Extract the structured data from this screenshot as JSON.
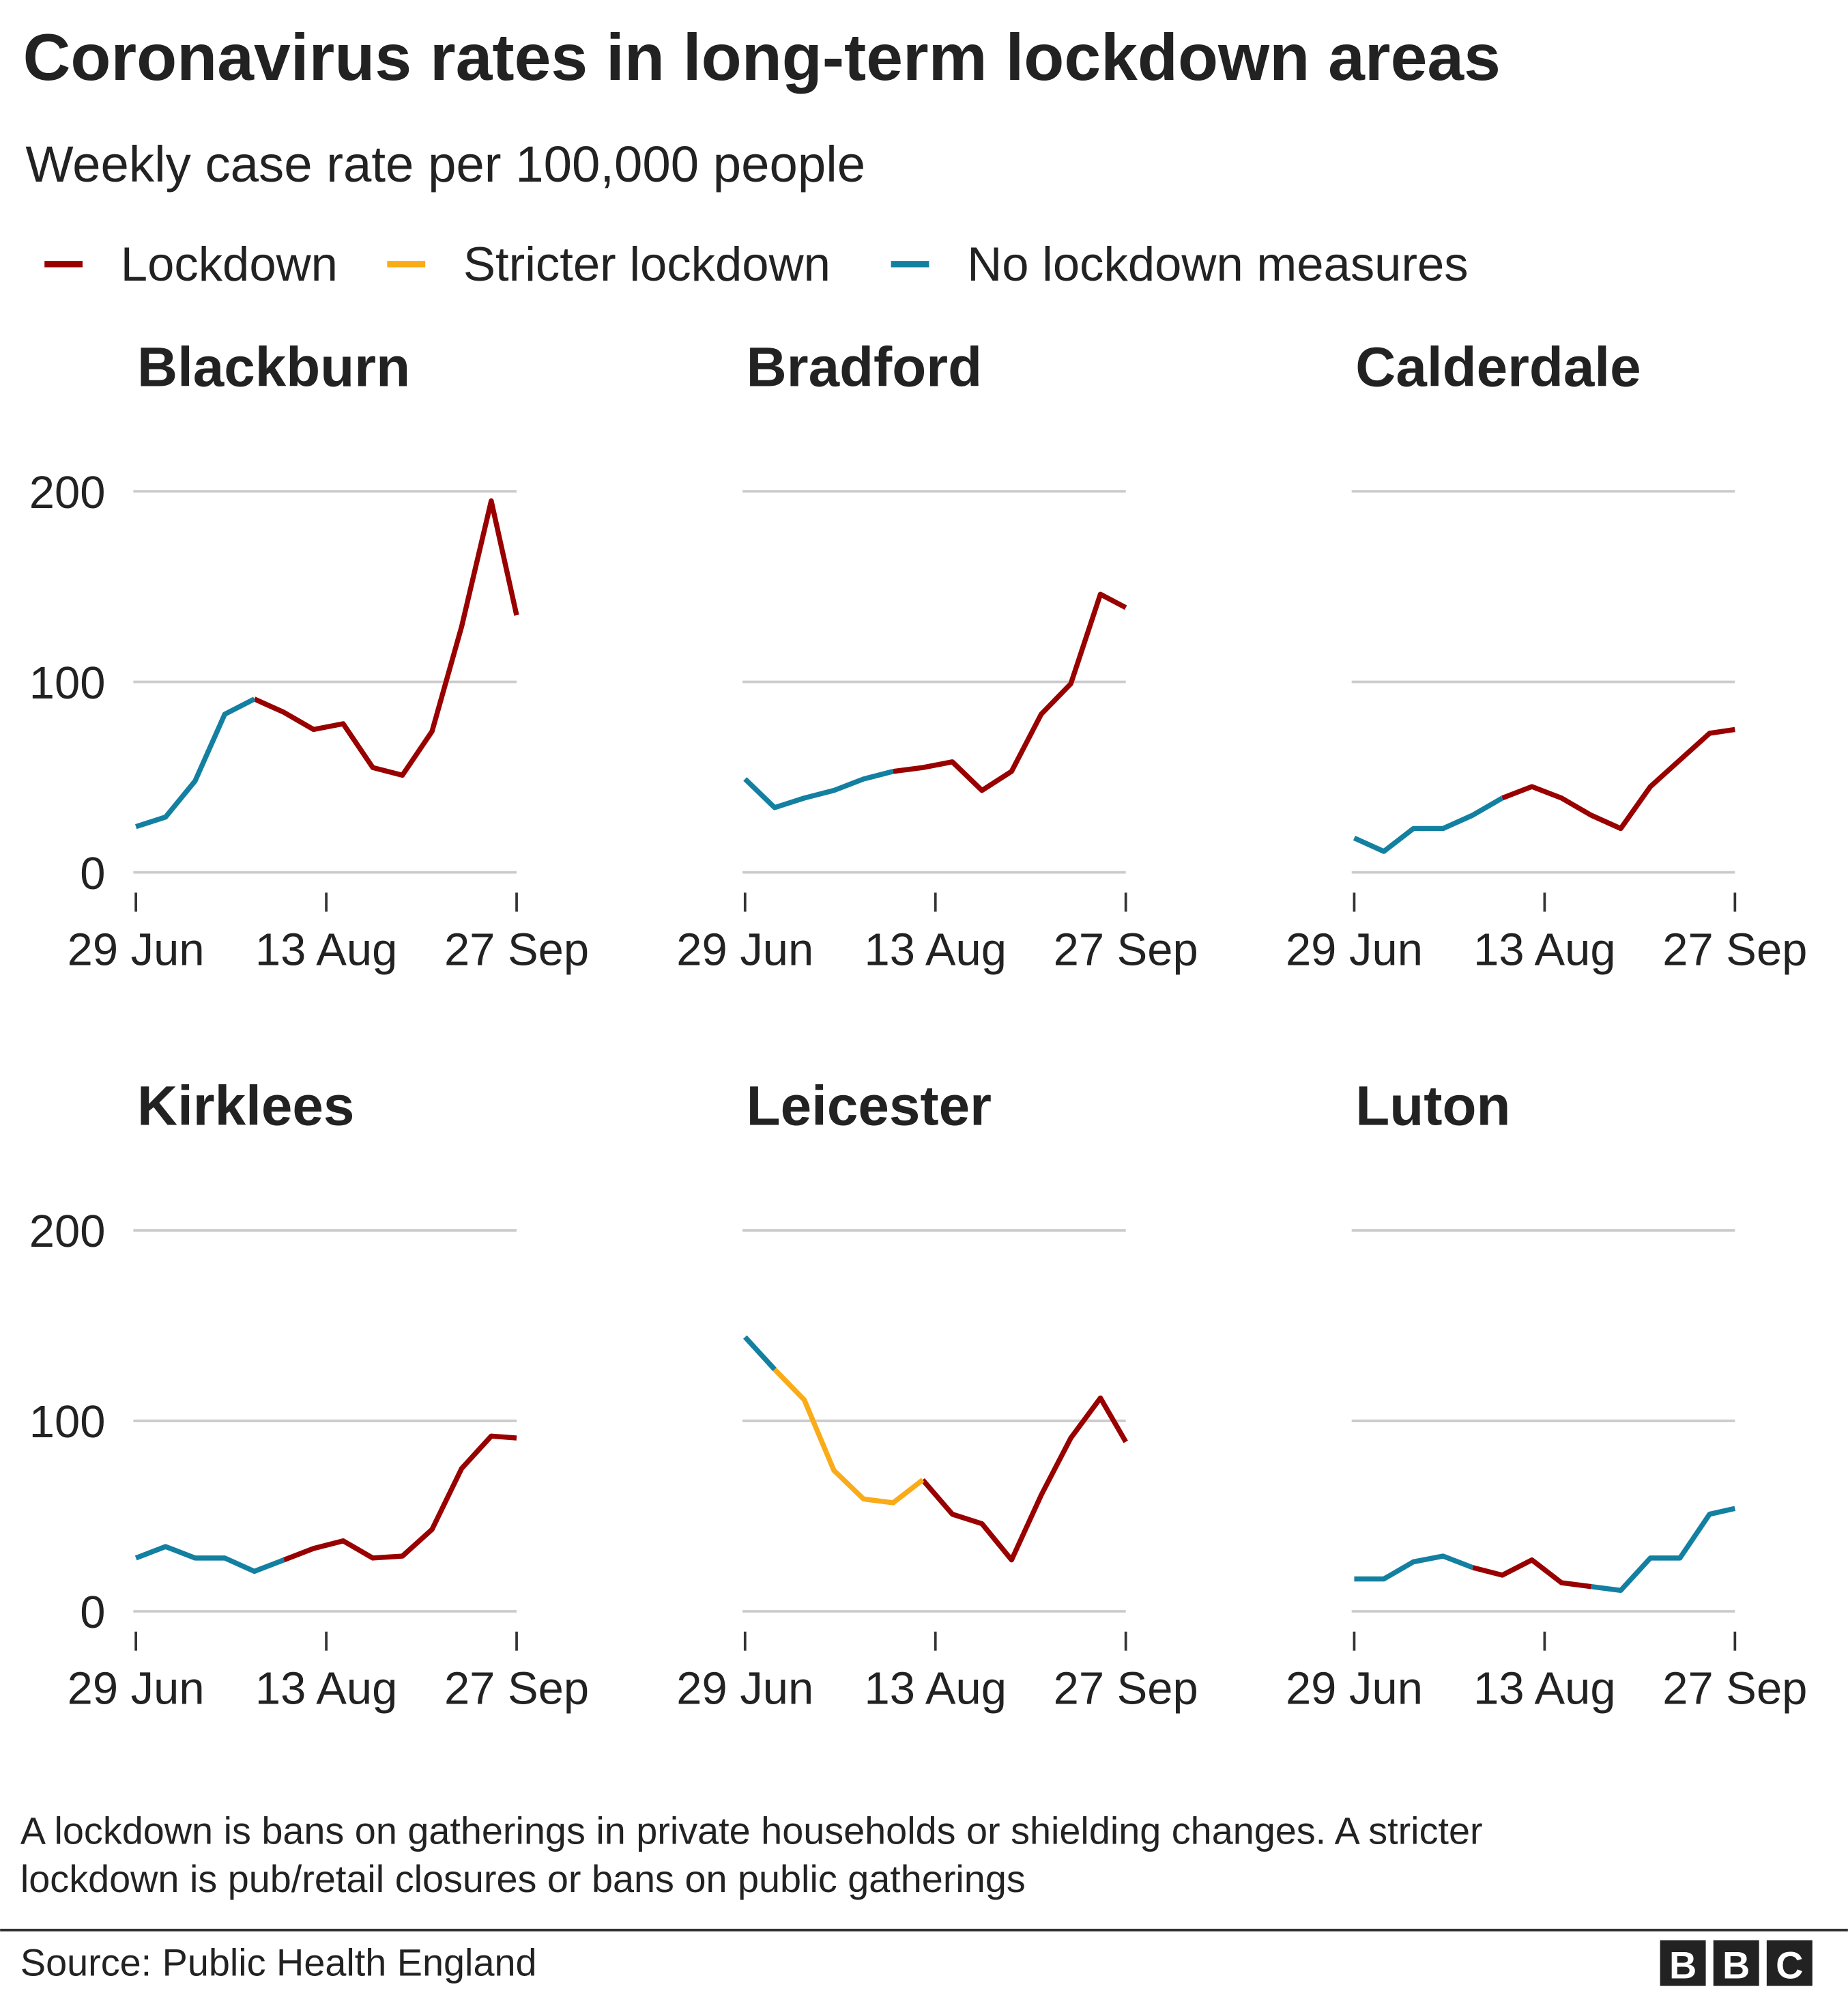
{
  "title": "Coronavirus rates in long-term lockdown areas",
  "subtitle": "Weekly case rate per 100,000 people",
  "legend": [
    {
      "name": "Lockdown",
      "color": "#990000"
    },
    {
      "name": "Stricter lockdown",
      "color": "#faab18"
    },
    {
      "name": "No lockdown measures",
      "color": "#1380a1"
    }
  ],
  "note": [
    "A lockdown is bans on gatherings in private households or shielding changes. A stricter",
    "lockdown is pub/retail closures or bans on public gatherings"
  ],
  "source": "Source: Public Health England",
  "logo": [
    "B",
    "B",
    "C"
  ],
  "chart_data": [
    {
      "type": "line",
      "title": "Blackburn",
      "x": [
        0,
        7,
        14,
        21,
        28,
        35,
        42,
        49,
        56,
        63,
        70,
        77,
        84,
        90
      ],
      "xlim": [
        0,
        90
      ],
      "xticks": [
        {
          "value": 0,
          "label": "29 Jun"
        },
        {
          "value": 45,
          "label": "13 Aug"
        },
        {
          "value": 90,
          "label": "27 Sep"
        }
      ],
      "ylim": [
        0,
        200
      ],
      "yticks": [
        0,
        100,
        200
      ],
      "grid": true,
      "series": [
        {
          "color": "#990000",
          "values": [
            null,
            null,
            null,
            null,
            91,
            84,
            75,
            78,
            55,
            51,
            74,
            129,
            195,
            135
          ]
        },
        {
          "color": "#1380a1",
          "values": [
            24,
            29,
            48,
            83,
            91,
            null,
            null,
            null,
            null,
            null,
            null,
            null,
            null,
            null
          ]
        }
      ]
    },
    {
      "type": "line",
      "title": "Bradford",
      "x": [
        0,
        7,
        14,
        21,
        28,
        35,
        42,
        49,
        56,
        63,
        70,
        77,
        84,
        90
      ],
      "xlim": [
        0,
        90
      ],
      "xticks": [
        {
          "value": 0,
          "label": "29 Jun"
        },
        {
          "value": 45,
          "label": "13 Aug"
        },
        {
          "value": 90,
          "label": "27 Sep"
        }
      ],
      "ylim": [
        0,
        200
      ],
      "yticks": [
        0,
        100,
        200
      ],
      "grid": true,
      "series": [
        {
          "color": "#990000",
          "values": [
            null,
            null,
            null,
            null,
            null,
            53,
            55,
            58,
            43,
            53,
            83,
            99,
            146,
            139
          ]
        },
        {
          "color": "#1380a1",
          "values": [
            49,
            34,
            39,
            43,
            49,
            53,
            null,
            null,
            null,
            null,
            null,
            null,
            null,
            null
          ]
        }
      ]
    },
    {
      "type": "line",
      "title": "Calderdale",
      "x": [
        0,
        7,
        14,
        21,
        28,
        35,
        42,
        49,
        56,
        63,
        70,
        77,
        84,
        90
      ],
      "xlim": [
        0,
        90
      ],
      "xticks": [
        {
          "value": 0,
          "label": "29 Jun"
        },
        {
          "value": 45,
          "label": "13 Aug"
        },
        {
          "value": 90,
          "label": "27 Sep"
        }
      ],
      "ylim": [
        0,
        200
      ],
      "yticks": [
        0,
        100,
        200
      ],
      "grid": true,
      "series": [
        {
          "color": "#990000",
          "values": [
            null,
            null,
            null,
            null,
            null,
            39,
            45,
            39,
            30,
            23,
            45,
            59,
            73,
            75
          ]
        },
        {
          "color": "#1380a1",
          "values": [
            18,
            11,
            23,
            23,
            30,
            39,
            null,
            null,
            null,
            null,
            null,
            null,
            null,
            null
          ]
        }
      ]
    },
    {
      "type": "line",
      "title": "Kirklees",
      "x": [
        0,
        7,
        14,
        21,
        28,
        35,
        42,
        49,
        56,
        63,
        70,
        77,
        84,
        90
      ],
      "xlim": [
        0,
        90
      ],
      "xticks": [
        {
          "value": 0,
          "label": "29 Jun"
        },
        {
          "value": 45,
          "label": "13 Aug"
        },
        {
          "value": 90,
          "label": "27 Sep"
        }
      ],
      "ylim": [
        0,
        200
      ],
      "yticks": [
        0,
        100,
        200
      ],
      "grid": true,
      "series": [
        {
          "color": "#990000",
          "values": [
            null,
            null,
            null,
            null,
            null,
            27,
            33,
            37,
            28,
            29,
            43,
            75,
            92,
            91
          ]
        },
        {
          "color": "#1380a1",
          "values": [
            28,
            34,
            28,
            28,
            21,
            27,
            null,
            null,
            null,
            null,
            null,
            null,
            null,
            null
          ]
        }
      ]
    },
    {
      "type": "line",
      "title": "Leicester",
      "x": [
        0,
        7,
        14,
        21,
        28,
        35,
        42,
        49,
        56,
        63,
        70,
        77,
        84,
        90
      ],
      "xlim": [
        0,
        90
      ],
      "xticks": [
        {
          "value": 0,
          "label": "29 Jun"
        },
        {
          "value": 45,
          "label": "13 Aug"
        },
        {
          "value": 90,
          "label": "27 Sep"
        }
      ],
      "ylim": [
        0,
        200
      ],
      "yticks": [
        0,
        100,
        200
      ],
      "grid": true,
      "series": [
        {
          "color": "#990000",
          "values": [
            null,
            null,
            null,
            null,
            null,
            null,
            69,
            51,
            46,
            27,
            61,
            91,
            112,
            89
          ]
        },
        {
          "color": "#faab18",
          "values": [
            null,
            127,
            111,
            74,
            59,
            57,
            69,
            null,
            null,
            null,
            null,
            null,
            null,
            null
          ]
        },
        {
          "color": "#1380a1",
          "values": [
            144,
            127,
            null,
            null,
            null,
            null,
            null,
            null,
            null,
            null,
            null,
            null,
            null,
            null
          ]
        }
      ]
    },
    {
      "type": "line",
      "title": "Luton",
      "x": [
        0,
        7,
        14,
        21,
        28,
        35,
        42,
        49,
        56,
        63,
        70,
        77,
        84,
        90
      ],
      "xlim": [
        0,
        90
      ],
      "xticks": [
        {
          "value": 0,
          "label": "29 Jun"
        },
        {
          "value": 45,
          "label": "13 Aug"
        },
        {
          "value": 90,
          "label": "27 Sep"
        }
      ],
      "ylim": [
        0,
        200
      ],
      "yticks": [
        0,
        100,
        200
      ],
      "grid": true,
      "series": [
        {
          "color": "#990000",
          "values": [
            null,
            null,
            null,
            null,
            23,
            19,
            27,
            15,
            13,
            null,
            null,
            null,
            null,
            null
          ]
        },
        {
          "color": "#1380a1",
          "values": [
            17,
            17,
            26,
            29,
            23,
            null,
            null,
            null,
            13,
            11,
            28,
            28,
            51,
            54
          ]
        }
      ]
    }
  ]
}
